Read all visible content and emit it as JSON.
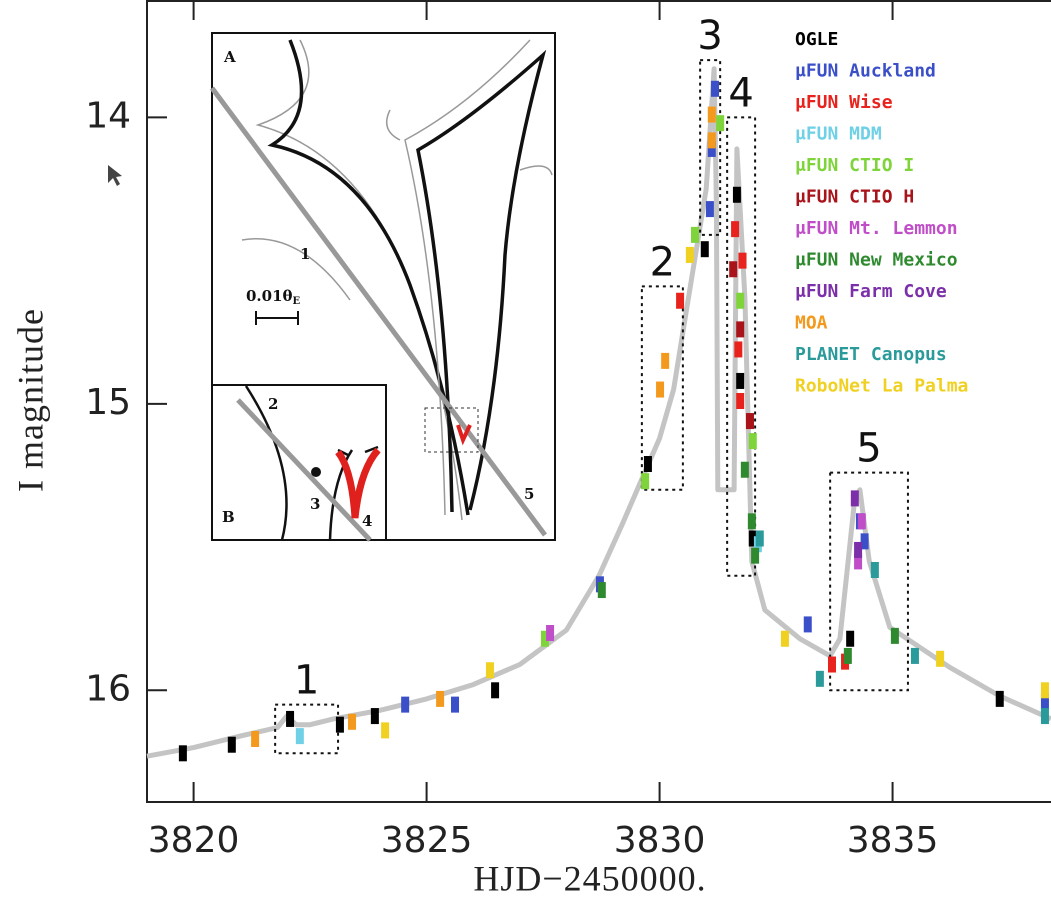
{
  "chart_data": {
    "type": "scatter",
    "x_label": "HJD−2450000.",
    "y_label": "I magnitude",
    "xlim": [
      3819,
      3838.4
    ],
    "ylim": [
      16.39,
      13.59
    ],
    "xticks": [
      3820,
      3825,
      3830,
      3835
    ],
    "yticks": [
      14,
      15,
      16
    ],
    "model": {
      "color": "#c4c4c4",
      "x": [
        3819.0,
        3820.0,
        3821.0,
        3821.8,
        3822.0,
        3822.2,
        3822.5,
        3823.0,
        3824.0,
        3825.0,
        3826.0,
        3827.0,
        3828.0,
        3828.7,
        3829.2,
        3829.6,
        3830.0,
        3830.3,
        3830.6,
        3830.8,
        3831.0,
        3831.17,
        3831.22,
        3831.25,
        3831.6,
        3831.66,
        3831.83,
        3831.98,
        3832.26,
        3833.01,
        3833.66,
        3833.87,
        3834.19,
        3834.3,
        3834.5,
        3834.94,
        3836.23,
        3837.3,
        3838.4
      ],
      "values": [
        16.23,
        16.2,
        16.16,
        16.13,
        16.09,
        16.12,
        16.12,
        16.1,
        16.07,
        16.03,
        15.98,
        15.91,
        15.79,
        15.6,
        15.42,
        15.27,
        15.12,
        14.95,
        14.65,
        14.45,
        14.25,
        13.83,
        14.3,
        15.3,
        15.3,
        14.11,
        14.63,
        15.55,
        15.72,
        15.82,
        15.88,
        15.82,
        15.33,
        15.3,
        15.55,
        15.78,
        15.92,
        16.02,
        16.1
      ]
    },
    "series": [
      {
        "name": "OGLE",
        "color": "#000000",
        "x": [
          3819.77,
          3820.82,
          3822.07,
          3823.14,
          3823.89,
          3826.47,
          3829.75,
          3830.97,
          3831.66,
          3831.73,
          3832.0,
          3834.09,
          3837.3
        ],
        "values": [
          16.22,
          16.19,
          16.1,
          16.12,
          16.09,
          16.0,
          15.21,
          14.46,
          14.27,
          14.92,
          15.47,
          15.82,
          16.03
        ]
      },
      {
        "name": "μFUN Auckland",
        "color": "#3a4fc8",
        "x": [
          3824.54,
          3825.61,
          3828.72,
          3831.08,
          3831.12,
          3831.19,
          3833.18,
          3834.3,
          3834.4,
          3838.27
        ],
        "values": [
          16.05,
          16.05,
          15.63,
          14.32,
          14.11,
          13.9,
          15.77,
          15.41,
          15.48,
          16.04
        ]
      },
      {
        "name": "μFUN Wise",
        "color": "#e8231e",
        "x": [
          3830.44,
          3831.62,
          3831.69,
          3831.73,
          3831.78,
          3833.7,
          3833.98
        ],
        "values": [
          14.64,
          14.39,
          14.81,
          14.99,
          14.5,
          15.91,
          15.9
        ]
      },
      {
        "name": "μFUN MDM",
        "color": "#6fd0e6",
        "x": [
          3822.28,
          3832.11
        ],
        "values": [
          16.16,
          15.49
        ]
      },
      {
        "name": "μFUN CTIO I",
        "color": "#7ed43a",
        "x": [
          3827.54,
          3829.69,
          3830.76,
          3831.3,
          3831.73,
          3832.0
        ],
        "values": [
          15.82,
          15.27,
          14.41,
          14.02,
          14.64,
          15.13
        ]
      },
      {
        "name": "μFUN CTIO H",
        "color": "#a8141a",
        "x": [
          3831.58,
          3831.73,
          3831.94
        ],
        "values": [
          14.53,
          14.74,
          15.06
        ]
      },
      {
        "name": "μFUN Mt. Lemmon",
        "color": "#c04ec8",
        "x": [
          3827.65,
          3834.26,
          3834.34
        ],
        "values": [
          15.8,
          15.55,
          15.41
        ]
      },
      {
        "name": "μFUN New Mexico",
        "color": "#2f8a2f",
        "x": [
          3828.76,
          3831.83,
          3831.98,
          3832.05,
          3834.04,
          3835.05
        ],
        "values": [
          15.65,
          15.23,
          15.41,
          15.53,
          15.88,
          15.81
        ]
      },
      {
        "name": "μFUN Farm Cove",
        "color": "#7b2fa8",
        "x": [
          3834.19,
          3834.26
        ],
        "values": [
          15.33,
          15.51
        ]
      },
      {
        "name": "MOA",
        "color": "#f39a1e",
        "x": [
          3821.32,
          3823.4,
          3825.29,
          3830.01,
          3830.12,
          3831.12,
          3831.12
        ],
        "values": [
          16.17,
          16.11,
          16.03,
          14.95,
          14.85,
          13.99,
          14.08
        ]
      },
      {
        "name": "PLANET Canopus",
        "color": "#2a9a9a",
        "x": [
          3832.15,
          3833.44,
          3834.62,
          3835.48,
          3838.27
        ],
        "values": [
          15.47,
          15.96,
          15.58,
          15.88,
          16.09
        ]
      },
      {
        "name": "RoboNet La Palma",
        "color": "#f0d020",
        "x": [
          3824.11,
          3826.36,
          3830.65,
          3832.69,
          3836.02,
          3838.27
        ],
        "values": [
          16.14,
          15.93,
          14.48,
          15.82,
          15.89,
          16.0
        ]
      }
    ],
    "annotations": [
      {
        "label": "1",
        "x": [
          3821.75,
          3823.1
        ],
        "y": [
          16.22,
          16.05
        ]
      },
      {
        "label": "2",
        "x": [
          3829.62,
          3830.5
        ],
        "y": [
          15.3,
          14.59
        ]
      },
      {
        "label": "3",
        "x": [
          3830.87,
          3831.3
        ],
        "y": [
          14.41,
          13.8
        ]
      },
      {
        "label": "4",
        "x": [
          3831.45,
          3832.05
        ],
        "y": [
          15.6,
          14.0
        ]
      },
      {
        "label": "5",
        "x": [
          3833.66,
          3835.33
        ],
        "y": [
          16.0,
          15.24
        ]
      }
    ]
  },
  "inset": {
    "panel_a": "A",
    "panel_b": "B",
    "scale_label": "0.01θ",
    "scale_sub": "E",
    "points": [
      "1",
      "2",
      "3",
      "4",
      "5"
    ]
  }
}
